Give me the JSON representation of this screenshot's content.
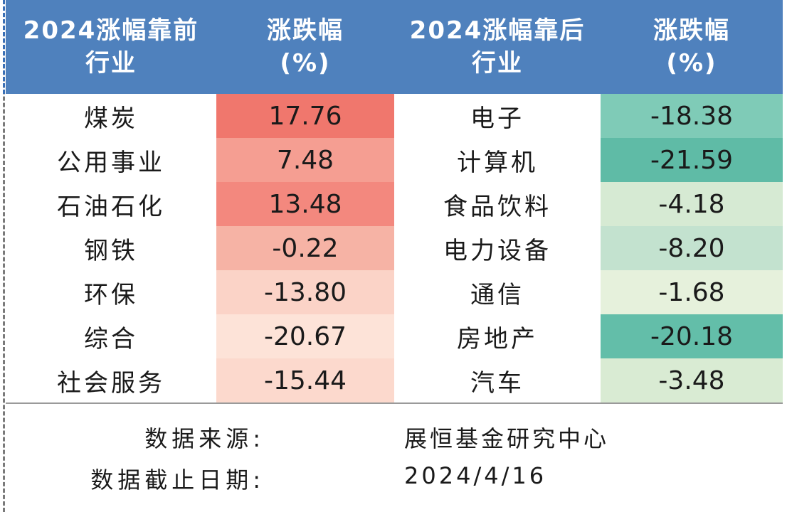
{
  "headers": {
    "top_industry": [
      "2024涨幅靠前",
      "行业"
    ],
    "top_change": [
      "涨跌幅",
      "(%)"
    ],
    "bottom_industry": [
      "2024涨幅靠后",
      "行业"
    ],
    "bottom_change": [
      "涨跌幅",
      "(%)"
    ]
  },
  "rows": [
    {
      "top_name": "煤炭",
      "top_value": "17.76",
      "bottom_name": "电子",
      "bottom_value": "-18.38"
    },
    {
      "top_name": "公用事业",
      "top_value": "7.48",
      "bottom_name": "计算机",
      "bottom_value": "-21.59"
    },
    {
      "top_name": "石油石化",
      "top_value": "13.48",
      "bottom_name": "食品饮料",
      "bottom_value": "-4.18"
    },
    {
      "top_name": "钢铁",
      "top_value": "-0.22",
      "bottom_name": "电力设备",
      "bottom_value": "-8.20"
    },
    {
      "top_name": "环保",
      "top_value": "-13.80",
      "bottom_name": "通信",
      "bottom_value": "-1.68"
    },
    {
      "top_name": "综合",
      "top_value": "-20.67",
      "bottom_name": "房地产",
      "bottom_value": "-20.18"
    },
    {
      "top_name": "社会服务",
      "top_value": "-15.44",
      "bottom_name": "汽车",
      "bottom_value": "-3.48"
    }
  ],
  "colors": {
    "header_bg": "#4f81bd",
    "top_value_cells": [
      "#f0776d",
      "#f59e92",
      "#f3887e",
      "#f6b3a5",
      "#fbd3c7",
      "#fde3d8",
      "#fcd9cd"
    ],
    "bottom_value_cells": [
      "#7fcbb7",
      "#5fbba6",
      "#d6ead3",
      "#c3e2cf",
      "#e6f1dc",
      "#63bea9",
      "#d9ebd3"
    ]
  },
  "footer": {
    "source_label": "数据来源:",
    "source_value": "展恒基金研究中心",
    "date_label": "数据截止日期:",
    "date_value": "2024/4/16"
  }
}
